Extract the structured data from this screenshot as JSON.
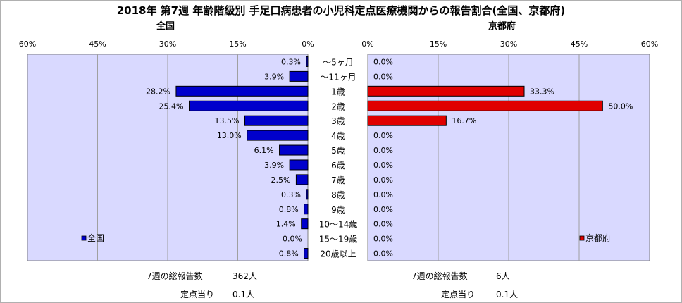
{
  "title": "2018年 第7週 年齢階級別 手足口病患者の小児科定点医療機関からの報告割合(全国、京都府)",
  "chart_data": [
    {
      "type": "bar",
      "orientation": "horizontal",
      "direction": "right-to-left",
      "subtitle": "全国",
      "categories": [
        "～5ヶ月",
        "～11ヶ月",
        "1歳",
        "2歳",
        "3歳",
        "4歳",
        "5歳",
        "6歳",
        "7歳",
        "8歳",
        "9歳",
        "10～14歳",
        "15～19歳",
        "20歳以上"
      ],
      "series": [
        {
          "name": "全国",
          "color": "#0000cc",
          "values": [
            0.3,
            3.9,
            28.2,
            25.4,
            13.5,
            13.0,
            6.1,
            3.9,
            2.5,
            0.3,
            0.8,
            1.4,
            0.0,
            0.8
          ],
          "value_labels": [
            "0.3%",
            "3.9%",
            "28.2%",
            "25.4%",
            "13.5%",
            "13.0%",
            "6.1%",
            "3.9%",
            "2.5%",
            "0.3%",
            "0.8%",
            "1.4%",
            "0.0%",
            "0.8%"
          ]
        }
      ],
      "xlim": [
        0,
        60
      ],
      "ticks": [
        60,
        45,
        30,
        15,
        0
      ],
      "tick_labels": [
        "60%",
        "45%",
        "30%",
        "15%",
        "0%"
      ],
      "grid": true,
      "legend_position": "bottom-left",
      "plot_background": "#d9d9ff"
    },
    {
      "type": "bar",
      "orientation": "horizontal",
      "direction": "left-to-right",
      "subtitle": "京都府",
      "categories": [
        "～5ヶ月",
        "～11ヶ月",
        "1歳",
        "2歳",
        "3歳",
        "4歳",
        "5歳",
        "6歳",
        "7歳",
        "8歳",
        "9歳",
        "10～14歳",
        "15～19歳",
        "20歳以上"
      ],
      "series": [
        {
          "name": "京都府",
          "color": "#e00000",
          "values": [
            0.0,
            0.0,
            33.3,
            50.0,
            16.7,
            0.0,
            0.0,
            0.0,
            0.0,
            0.0,
            0.0,
            0.0,
            0.0,
            0.0
          ],
          "value_labels": [
            "0.0%",
            "0.0%",
            "33.3%",
            "50.0%",
            "16.7%",
            "0.0%",
            "0.0%",
            "0.0%",
            "0.0%",
            "0.0%",
            "0.0%",
            "0.0%",
            "0.0%",
            "0.0%"
          ]
        }
      ],
      "xlim": [
        0,
        60
      ],
      "ticks": [
        0,
        15,
        30,
        45,
        60
      ],
      "tick_labels": [
        "0%",
        "15%",
        "30%",
        "45%",
        "60%"
      ],
      "grid": true,
      "legend_position": "bottom-right",
      "plot_background": "#d9d9ff"
    }
  ],
  "footer": {
    "left": {
      "total_label": "7週の総報告数",
      "total_value": "362人",
      "per_label": "定点当り",
      "per_value": "0.1人"
    },
    "right": {
      "total_label": "7週の総報告数",
      "total_value": "6人",
      "per_label": "定点当り",
      "per_value": "0.1人"
    }
  }
}
